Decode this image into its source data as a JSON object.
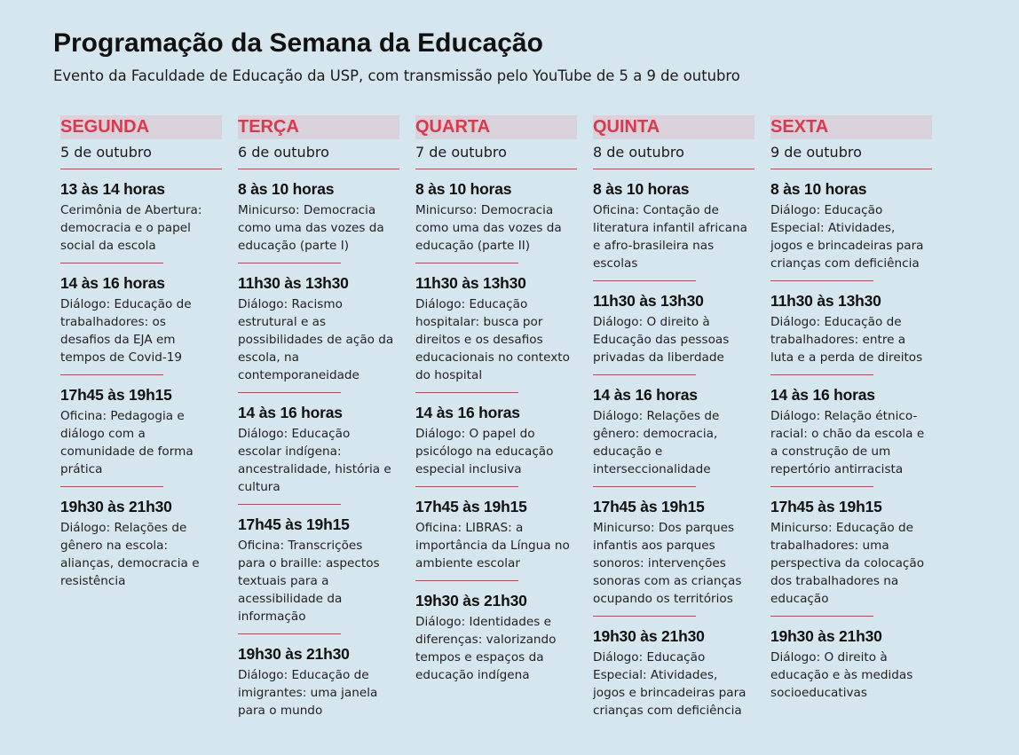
{
  "header": {
    "title": "Programação da Semana da Educação",
    "subtitle": "Evento da Faculdade de Educação da USP, com transmissão pelo YouTube de 5 a 9 de outubro"
  },
  "colors": {
    "accent": "#e0364a",
    "day_bg": "#d9d1dc",
    "page_bg": "#d6e6ef"
  },
  "days": [
    {
      "name": "SEGUNDA",
      "date": "5 de outubro",
      "events": [
        {
          "time": "13 às 14 horas",
          "lines": [
            "Cerimônia de Abertura:",
            "democracia e o papel",
            "social da escola"
          ]
        },
        {
          "time": "14 às 16 horas",
          "lines": [
            "Diálogo: Educação de",
            "trabalhadores: os",
            "desafios da EJA em",
            "tempos de Covid-19"
          ]
        },
        {
          "time": "17h45 às 19h15",
          "lines": [
            "Oficina: Pedagogia e",
            "diálogo com a",
            "comunidade de forma",
            "prática"
          ]
        },
        {
          "time": "19h30 às 21h30",
          "lines": [
            "Diálogo: Relações de",
            "gênero na escola:",
            "alianças, democracia e",
            "resistência"
          ]
        }
      ]
    },
    {
      "name": "TERÇA",
      "date": "6 de outubro",
      "events": [
        {
          "time": "8 às 10 horas",
          "lines": [
            "Minicurso: Democracia",
            "como uma das vozes da",
            "educação (parte I)"
          ]
        },
        {
          "time": "11h30 às 13h30",
          "lines": [
            "Diálogo: Racismo",
            "estrutural e as",
            "possibilidades de ação da",
            "escola, na",
            "contemporaneidade"
          ]
        },
        {
          "time": "14 às 16 horas",
          "lines": [
            "Diálogo: Educação",
            "escolar indígena:",
            "ancestralidade, história e",
            "cultura"
          ]
        },
        {
          "time": "17h45 às 19h15",
          "lines": [
            "Oficina: Transcrições",
            "para o braille: aspectos",
            "textuais para a",
            "acessibilidade da",
            "informação"
          ]
        },
        {
          "time": "19h30 às 21h30",
          "lines": [
            "Diálogo: Educação de",
            "imigrantes: uma janela",
            "para o mundo"
          ]
        }
      ]
    },
    {
      "name": "QUARTA",
      "date": "7 de outubro",
      "events": [
        {
          "time": "8 às 10 horas",
          "lines": [
            "Minicurso: Democracia",
            "como uma das vozes da",
            "educação (parte II)"
          ]
        },
        {
          "time": "11h30 às 13h30",
          "lines": [
            "Diálogo: Educação",
            "hospitalar: busca por",
            "direitos e os desafios",
            "educacionais no contexto",
            "do hospital"
          ]
        },
        {
          "time": "14 às 16 horas",
          "lines": [
            "Diálogo: O papel do",
            "psicólogo na educação",
            "especial inclusiva"
          ]
        },
        {
          "time": "17h45 às 19h15",
          "lines": [
            "Oficina: LIBRAS: a",
            "importância da Língua no",
            "ambiente escolar"
          ]
        },
        {
          "time": "19h30 às 21h30",
          "lines": [
            "Diálogo: Identidades e",
            "diferenças: valorizando",
            "tempos e espaços da",
            "educação indígena"
          ]
        }
      ]
    },
    {
      "name": "QUINTA",
      "date": "8 de outubro",
      "events": [
        {
          "time": "8 às 10 horas",
          "lines": [
            "Oficina: Contação de",
            "literatura infantil africana",
            "e afro-brasileira nas",
            "escolas"
          ]
        },
        {
          "time": "11h30 às 13h30",
          "lines": [
            "Diálogo: O direito à",
            "Educação das pessoas",
            "privadas da liberdade"
          ]
        },
        {
          "time": "14 às 16 horas",
          "lines": [
            "Diálogo: Relações de",
            "gênero: democracia,",
            "educação e",
            "interseccionalidade"
          ]
        },
        {
          "time": "17h45 às 19h15",
          "lines": [
            "Minicurso: Dos parques",
            "infantis aos parques",
            "sonoros: intervenções",
            "sonoras com as crianças",
            "ocupando os territórios"
          ]
        },
        {
          "time": "19h30 às 21h30",
          "lines": [
            "Diálogo: Educação",
            "Especial: Atividades,",
            "jogos e brincadeiras para",
            "crianças com deficiência"
          ]
        }
      ]
    },
    {
      "name": "SEXTA",
      "date": "9 de outubro",
      "events": [
        {
          "time": "8 às 10 horas",
          "lines": [
            "Diálogo: Educação",
            "Especial: Atividades,",
            "jogos e brincadeiras para",
            "crianças com deficiência"
          ]
        },
        {
          "time": "11h30 às 13h30",
          "lines": [
            "Diálogo: Educação de",
            "trabalhadores: entre a",
            "luta e a perda de direitos"
          ]
        },
        {
          "time": "14 às 16 horas",
          "lines": [
            "Diálogo: Relação étnico-",
            "racial: o chão da escola e",
            "a construção de um",
            "repertório antirracista"
          ]
        },
        {
          "time": "17h45 às 19h15",
          "lines": [
            "Minicurso: Educação de",
            "trabalhadores: uma",
            "perspectiva da colocação",
            "dos trabalhadores na",
            "educação"
          ]
        },
        {
          "time": "19h30 às 21h30",
          "lines": [
            "Diálogo: O direito à",
            "educação e às medidas",
            "socioeducativas"
          ]
        }
      ]
    }
  ]
}
